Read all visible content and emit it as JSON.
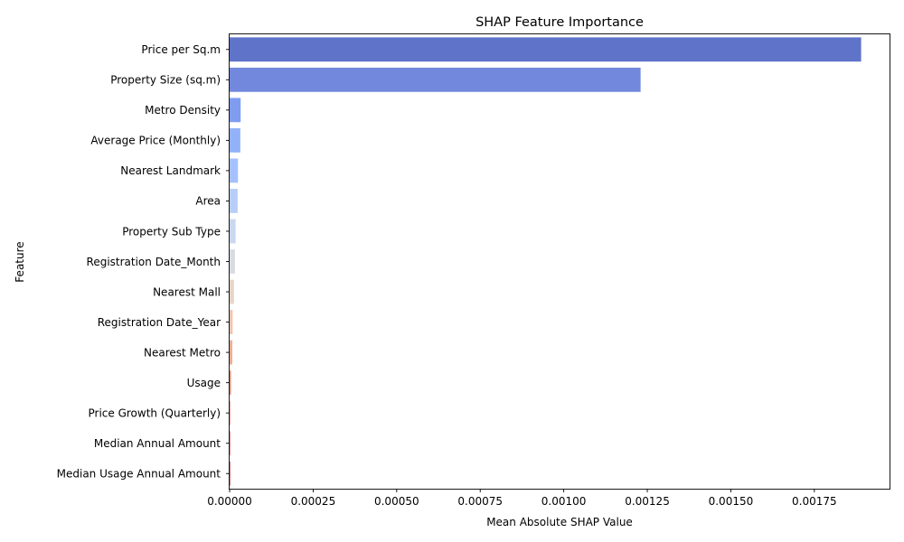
{
  "chart_data": {
    "type": "bar",
    "orientation": "horizontal",
    "title": "SHAP Feature Importance",
    "xlabel": "Mean Absolute SHAP Value",
    "ylabel": "Feature",
    "xlim": [
      0,
      0.001975
    ],
    "xticks": [
      "0.00000",
      "0.00025",
      "0.00050",
      "0.00075",
      "0.00100",
      "0.00125",
      "0.00150",
      "0.00175"
    ],
    "xtick_values": [
      0,
      0.00025,
      0.0005,
      0.00075,
      0.001,
      0.00125,
      0.0015,
      0.00175
    ],
    "grid": false,
    "legend": "none",
    "categories": [
      "Price per Sq.m",
      "Property Size (sq.m)",
      "Metro Density",
      "Average Price (Monthly)",
      "Nearest Landmark",
      "Area",
      "Property Sub Type",
      "Registration Date_Month",
      "Nearest Mall",
      "Registration Date_Year",
      "Nearest Metro",
      "Usage",
      "Price Growth (Quarterly)",
      "Median Annual Amount",
      "Median Usage Annual Amount"
    ],
    "values": [
      0.00189,
      0.00123,
      3.3e-05,
      3.2e-05,
      2.5e-05,
      2.4e-05,
      1.8e-05,
      1.6e-05,
      1.3e-05,
      9e-06,
      8e-06,
      4e-06,
      1.5e-06,
      1e-06,
      8e-07
    ],
    "colors": [
      "#5f74c9",
      "#7288dc",
      "#7f9cf0",
      "#92b1f9",
      "#a5c0fc",
      "#b8cef7",
      "#c9d7ef",
      "#d8dce2",
      "#e6d4c9",
      "#edc5b0",
      "#ecac93",
      "#e08e74",
      "#d07058",
      "#bd4f3f",
      "#a6262c"
    ]
  }
}
